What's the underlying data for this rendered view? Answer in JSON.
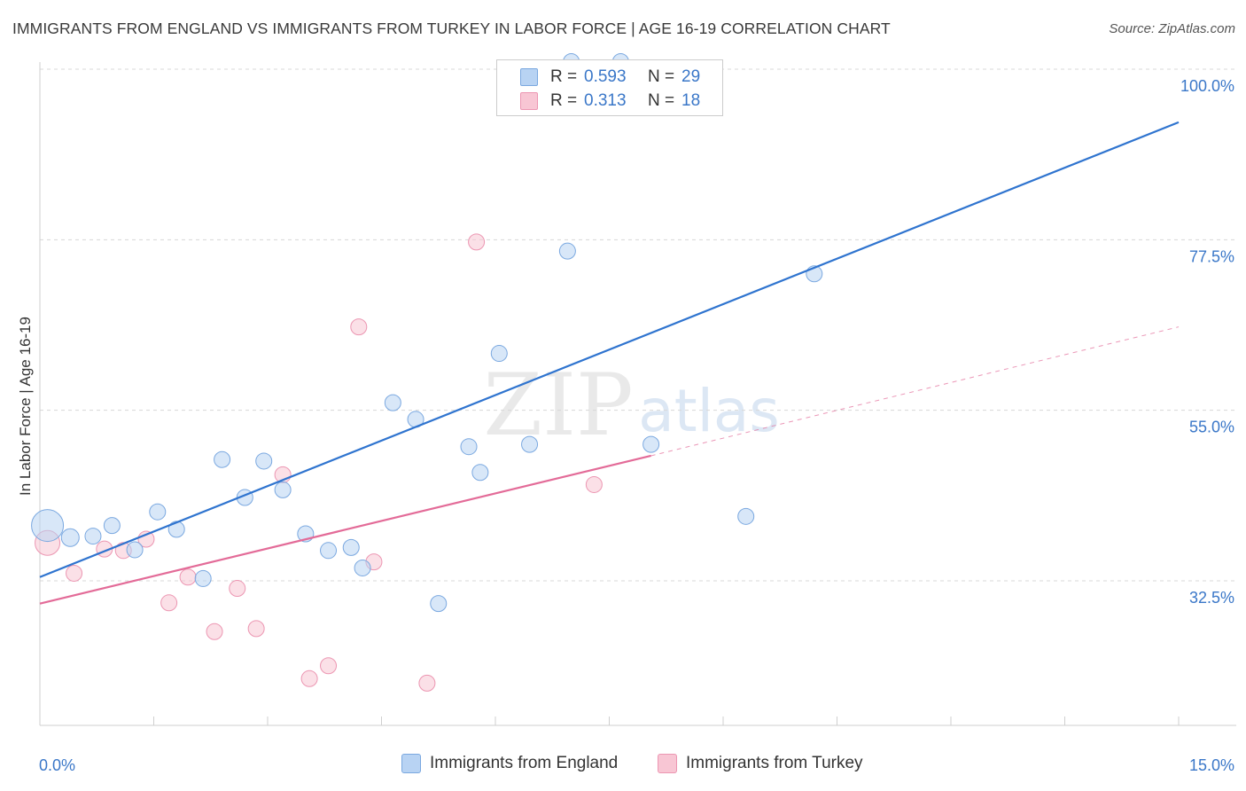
{
  "title": "IMMIGRANTS FROM ENGLAND VS IMMIGRANTS FROM TURKEY IN LABOR FORCE | AGE 16-19 CORRELATION CHART",
  "source_prefix": "Source:",
  "source_site": "ZipAtlas.com",
  "watermark": {
    "zip": "ZIP",
    "atlas": "atlas"
  },
  "colors": {
    "england_fill": "#b8d3f3",
    "england_stroke": "#7aa8e0",
    "england_line": "#2f74cf",
    "turkey_fill": "#f8c6d4",
    "turkey_stroke": "#ec96b2",
    "turkey_line": "#e36b98",
    "axis_text": "#3a77c8",
    "grid": "#d8d8d8"
  },
  "stats": {
    "england": {
      "r_label": "R =",
      "r_value": "0.593",
      "n_label": "N =",
      "n_value": "29"
    },
    "turkey": {
      "r_label": "R =",
      "r_value": "0.313",
      "n_label": "N =",
      "n_value": "18"
    }
  },
  "legend": {
    "england": "Immigrants from England",
    "turkey": "Immigrants from Turkey"
  },
  "chart_data": {
    "type": "scatter",
    "title": "IMMIGRANTS FROM ENGLAND VS IMMIGRANTS FROM TURKEY IN LABOR FORCE | AGE 16-19 CORRELATION CHART",
    "xlabel": "",
    "ylabel": "In Labor Force | Age 16-19",
    "xlim": [
      0,
      15
    ],
    "ylim": [
      10,
      102
    ],
    "x_tick_labels": [
      "0.0%",
      "15.0%"
    ],
    "y_ticks": [
      32.5,
      55.0,
      77.5,
      100.0
    ],
    "y_tick_labels": [
      "32.5%",
      "55.0%",
      "77.5%",
      "100.0%"
    ],
    "grid": true,
    "series": [
      {
        "name": "Immigrants from England",
        "r": 0.593,
        "n": 29,
        "points": [
          [
            0.1,
            39.8,
            18
          ],
          [
            0.4,
            38.2,
            10
          ],
          [
            0.7,
            38.4,
            9
          ],
          [
            0.95,
            39.8,
            9
          ],
          [
            1.25,
            36.6,
            9
          ],
          [
            1.55,
            41.6,
            9
          ],
          [
            1.8,
            39.3,
            9
          ],
          [
            2.15,
            32.8,
            9
          ],
          [
            2.4,
            48.5,
            9
          ],
          [
            2.7,
            43.5,
            9
          ],
          [
            2.95,
            48.3,
            9
          ],
          [
            3.2,
            44.5,
            9
          ],
          [
            3.5,
            38.7,
            9
          ],
          [
            3.8,
            36.5,
            9
          ],
          [
            4.1,
            36.9,
            9
          ],
          [
            4.25,
            34.2,
            9
          ],
          [
            4.65,
            56.0,
            9
          ],
          [
            4.95,
            53.8,
            9
          ],
          [
            5.25,
            29.5,
            9
          ],
          [
            5.65,
            50.2,
            9
          ],
          [
            5.8,
            46.8,
            9
          ],
          [
            6.05,
            62.5,
            9
          ],
          [
            6.45,
            50.5,
            9
          ],
          [
            6.95,
            76.0,
            9
          ],
          [
            7.0,
            101.0,
            9
          ],
          [
            7.65,
            101.0,
            9
          ],
          [
            8.05,
            50.5,
            9
          ],
          [
            9.3,
            41.0,
            9
          ],
          [
            10.2,
            73.0,
            9
          ]
        ],
        "trend": {
          "x": [
            0,
            15
          ],
          "y": [
            33.0,
            93.0
          ]
        }
      },
      {
        "name": "Immigrants from Turkey",
        "r": 0.313,
        "n": 18,
        "points": [
          [
            0.1,
            37.5,
            14
          ],
          [
            0.45,
            33.5,
            9
          ],
          [
            0.85,
            36.7,
            9
          ],
          [
            1.1,
            36.5,
            9
          ],
          [
            1.4,
            38.0,
            9
          ],
          [
            1.7,
            29.6,
            9
          ],
          [
            1.95,
            33.0,
            9
          ],
          [
            2.3,
            25.8,
            9
          ],
          [
            2.6,
            31.5,
            9
          ],
          [
            2.85,
            26.2,
            9
          ],
          [
            3.2,
            46.5,
            9
          ],
          [
            3.55,
            19.6,
            9
          ],
          [
            3.8,
            21.3,
            9
          ],
          [
            4.2,
            66.0,
            9
          ],
          [
            4.4,
            35.0,
            9
          ],
          [
            5.1,
            19.0,
            9
          ],
          [
            5.75,
            77.2,
            9
          ],
          [
            7.3,
            45.2,
            9
          ]
        ],
        "trend": {
          "x": [
            0,
            8.05
          ],
          "y": [
            29.5,
            49.0
          ]
        },
        "trend_extension": {
          "x": [
            8.05,
            15
          ],
          "y": [
            49.0,
            66.0
          ]
        }
      }
    ]
  }
}
